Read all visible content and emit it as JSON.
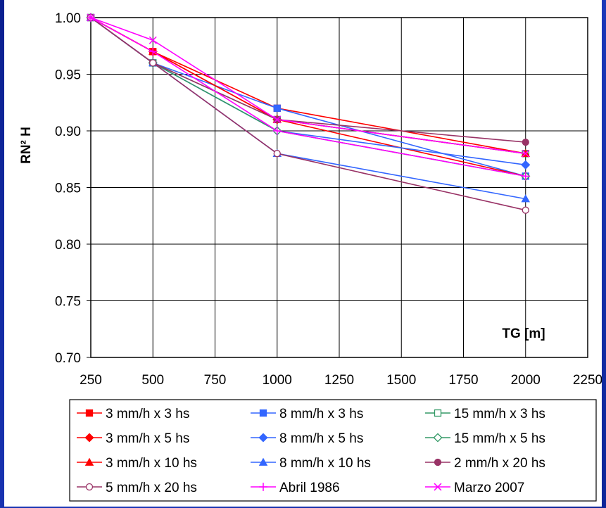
{
  "chart_data": {
    "type": "line",
    "title": "",
    "xlabel": "TG [m]",
    "ylabel": "RN² H",
    "xlim": [
      250,
      2250
    ],
    "ylim": [
      0.7,
      1.0
    ],
    "x_ticks": [
      "250",
      "500",
      "750",
      "1000",
      "1250",
      "1500",
      "1750",
      "2000",
      "2250"
    ],
    "y_ticks": [
      "0.70",
      "0.75",
      "0.80",
      "0.85",
      "0.90",
      "0.95",
      "1.00"
    ],
    "grid": true,
    "legend_position": "bottom",
    "x": [
      250,
      500,
      1000,
      2000
    ],
    "series": [
      {
        "name": "3 mm/h x 3 hs",
        "color": "#ff0000",
        "marker": "square-filled",
        "values": [
          1.0,
          0.97,
          0.92,
          0.88
        ]
      },
      {
        "name": "8 mm/h x 3 hs",
        "color": "#3366ff",
        "marker": "square-filled",
        "values": [
          1.0,
          0.96,
          0.92,
          0.86
        ]
      },
      {
        "name": "15 mm/h x 3 hs",
        "color": "#339966",
        "marker": "square-open",
        "values": [
          1.0,
          0.96,
          0.91,
          0.88
        ]
      },
      {
        "name": "3 mm/h x 5 hs",
        "color": "#ff0000",
        "marker": "diamond-filled",
        "values": [
          1.0,
          0.97,
          0.91,
          0.86
        ]
      },
      {
        "name": "8 mm/h x 5 hs",
        "color": "#3366ff",
        "marker": "diamond-filled",
        "values": [
          1.0,
          0.96,
          0.9,
          0.87
        ]
      },
      {
        "name": "15 mm/h x 5 hs",
        "color": "#339966",
        "marker": "diamond-open",
        "values": [
          1.0,
          0.96,
          0.9,
          0.86
        ]
      },
      {
        "name": "3 mm/h x 10 hs",
        "color": "#ff0000",
        "marker": "triangle-filled",
        "values": [
          1.0,
          0.97,
          0.91,
          0.88
        ]
      },
      {
        "name": "8 mm/h x 10 hs",
        "color": "#3366ff",
        "marker": "triangle-filled",
        "values": [
          1.0,
          0.96,
          0.88,
          0.84
        ]
      },
      {
        "name": "2 mm/h x 20 hs",
        "color": "#993366",
        "marker": "circle-filled",
        "values": [
          1.0,
          0.96,
          0.91,
          0.89
        ]
      },
      {
        "name": "5 mm/h x 20 hs",
        "color": "#993366",
        "marker": "circle-open",
        "values": [
          1.0,
          0.96,
          0.88,
          0.83
        ]
      },
      {
        "name": "Abril 1986",
        "color": "#ff00ff",
        "marker": "plus",
        "values": [
          1.0,
          0.97,
          0.9,
          0.86
        ]
      },
      {
        "name": "Marzo 2007",
        "color": "#ff00ff",
        "marker": "x",
        "values": [
          1.0,
          0.98,
          0.91,
          0.88
        ]
      }
    ]
  }
}
